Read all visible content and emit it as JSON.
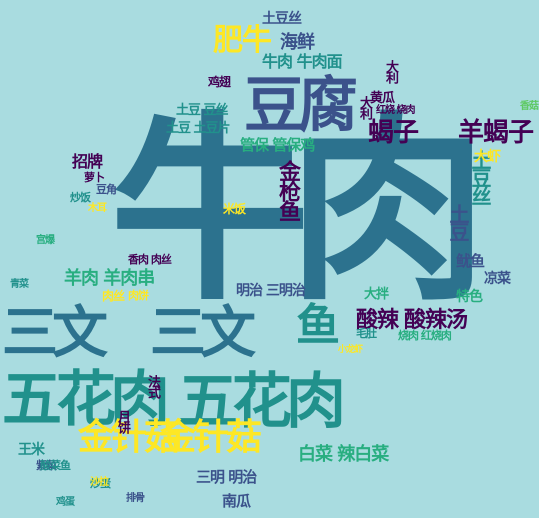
{
  "palette": {
    "background": "#a9dce0",
    "purple": "#440154",
    "indigo": "#3b528b",
    "blue": "#2c728e",
    "teal": "#21918c",
    "green": "#28ae80",
    "lime": "#5ec962",
    "yellow": "#addc30",
    "bright": "#fde725"
  },
  "words": [
    {
      "text": "牛肉",
      "color": "#2c728e"
    },
    {
      "text": "五花肉",
      "color": "#21918c"
    },
    {
      "text": "五花肉",
      "color": "#21918c"
    },
    {
      "text": "三文",
      "color": "#2c728e"
    },
    {
      "text": "三文",
      "color": "#2c728e"
    },
    {
      "text": "豆腐",
      "color": "#3b528b"
    },
    {
      "text": "金针菇",
      "color": "#fde725"
    },
    {
      "text": "金针菇",
      "color": "#fde725"
    },
    {
      "text": "鱼",
      "color": "#21918c"
    },
    {
      "text": "肥牛",
      "color": "#fde725"
    },
    {
      "text": "蝎子",
      "color": "#440154"
    },
    {
      "text": "羊蝎子",
      "color": "#440154"
    },
    {
      "text": "金枪鱼",
      "color": "#440154"
    },
    {
      "text": "土豆",
      "color": "#3b528b"
    },
    {
      "text": "土豆丝",
      "color": "#21918c"
    },
    {
      "text": "酸辣",
      "color": "#440154"
    },
    {
      "text": "酸辣汤",
      "color": "#440154"
    },
    {
      "text": "牛肉 牛肉面",
      "color": "#21918c"
    },
    {
      "text": "海鲜",
      "color": "#3b528b"
    },
    {
      "text": "土豆丝",
      "color": "#3b528b"
    },
    {
      "text": "豆丝",
      "color": "#3b528b"
    },
    {
      "text": "羊肉 羊肉串",
      "color": "#28ae80"
    },
    {
      "text": "白菜 辣白菜",
      "color": "#28ae80"
    },
    {
      "text": "三明 明治",
      "color": "#3b528b"
    },
    {
      "text": "三明治",
      "color": "#3b528b"
    },
    {
      "text": "明治 三明治",
      "color": "#3b528b"
    },
    {
      "text": "南瓜",
      "color": "#3b528b"
    },
    {
      "text": "管保 管保鸡",
      "color": "#28ae80"
    },
    {
      "text": "土豆 豆丝",
      "color": "#21918c"
    },
    {
      "text": "土豆 土豆片",
      "color": "#21918c"
    },
    {
      "text": "招牌",
      "color": "#440154"
    },
    {
      "text": "大利",
      "color": "#440154"
    },
    {
      "text": "大利",
      "color": "#440154"
    },
    {
      "text": "大虾",
      "color": "#fde725"
    },
    {
      "text": "特色",
      "color": "#28ae80"
    },
    {
      "text": "凉菜",
      "color": "#3b528b"
    },
    {
      "text": "大拌",
      "color": "#28ae80"
    },
    {
      "text": "鱿鱼",
      "color": "#3b528b"
    },
    {
      "text": "黄瓜",
      "color": "#440154"
    },
    {
      "text": "米饭",
      "color": "#fde725"
    },
    {
      "text": "炒饭",
      "color": "#21918c"
    },
    {
      "text": "鸡翅",
      "color": "#440154"
    },
    {
      "text": "肉丝",
      "color": "#fde725"
    },
    {
      "text": "香肉 肉丝",
      "color": "#440154"
    },
    {
      "text": "王米",
      "color": "#21918c"
    },
    {
      "text": "月饼",
      "color": "#440154"
    },
    {
      "text": "法式",
      "color": "#440154"
    },
    {
      "text": "红烧 烧肉",
      "color": "#440154"
    },
    {
      "text": "烧肉 红烧肉",
      "color": "#28ae80"
    },
    {
      "text": "毛肚",
      "color": "#21918c"
    },
    {
      "text": "肉饼",
      "color": "#fde725"
    },
    {
      "text": "豆腐",
      "color": "#28ae80"
    },
    {
      "text": "宫爆",
      "color": "#28ae80"
    },
    {
      "text": "紫菜",
      "color": "#3b528b"
    },
    {
      "text": "炒蛋",
      "color": "#21918c"
    },
    {
      "text": "豆角",
      "color": "#3b528b"
    },
    {
      "text": "酸菜鱼",
      "color": "#21918c"
    },
    {
      "text": "萝卜",
      "color": "#440154"
    },
    {
      "text": "木耳",
      "color": "#fde725"
    },
    {
      "text": "牛肉丸",
      "color": "#fde725"
    },
    {
      "text": "鸡蛋",
      "color": "#21918c"
    },
    {
      "text": "排骨",
      "color": "#3b528b"
    },
    {
      "text": "沙拉",
      "color": "#fde725"
    },
    {
      "text": "小龙虾",
      "color": "#fde725"
    },
    {
      "text": "香菇",
      "color": "#5ec962"
    },
    {
      "text": "香菇",
      "color": "#440154"
    },
    {
      "text": "青菜",
      "color": "#21918c"
    }
  ]
}
